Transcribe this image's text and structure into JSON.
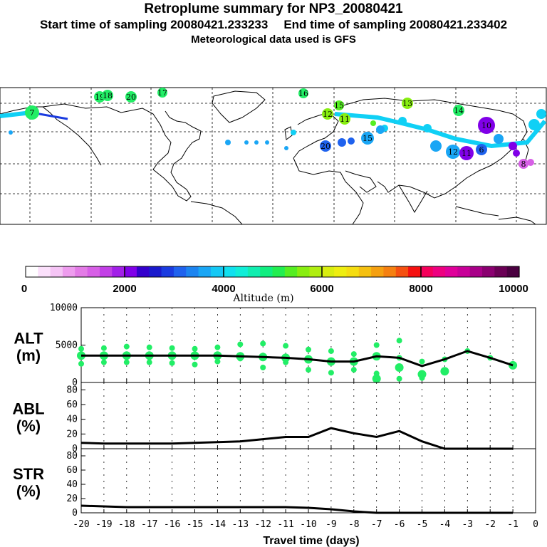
{
  "header": {
    "title": "Retroplume summary for NP3_20080421",
    "start_label": "Start time of sampling 20080421.233233",
    "end_label": "End time of sampling 20080421.233402",
    "met_label": "Meteorological data used is GFS"
  },
  "colorbar": {
    "ticks": [
      "0",
      "2000",
      "4000",
      "6000",
      "8000",
      "10000"
    ],
    "label": "Altitude (m)",
    "colors": [
      "#ffffff",
      "#fbe0fb",
      "#f5c4f5",
      "#ee9cee",
      "#e37be6",
      "#d75fe6",
      "#c23fe6",
      "#a21fe8",
      "#8000e8",
      "#3300cc",
      "#1a1acc",
      "#1a3be0",
      "#1f62ee",
      "#1c84f0",
      "#1aa6f5",
      "#14c8f5",
      "#10e0ef",
      "#10eed8",
      "#10eeb0",
      "#10ee80",
      "#22ee50",
      "#55ee22",
      "#88ee10",
      "#b0ee10",
      "#d8ee10",
      "#eeee10",
      "#f5dd10",
      "#f5c010",
      "#f5a010",
      "#f58010",
      "#f55010",
      "#f51010",
      "#f5005a",
      "#ee0080",
      "#e0009a",
      "#c80098",
      "#a80088",
      "#8a0070",
      "#6a0055",
      "#4a0040"
    ],
    "colors_notes": "colorbar swatches from 0 to 10000 m"
  },
  "map": {
    "trajectory_labels": [
      {
        "text": "19",
        "color": "#22ee66"
      },
      {
        "text": "18",
        "color": "#22ee66"
      },
      {
        "text": "20",
        "color": "#22ee66"
      },
      {
        "text": "17",
        "color": "#22ee66"
      },
      {
        "text": "16",
        "color": "#22ee66"
      },
      {
        "text": "15",
        "color": "#55ee22"
      },
      {
        "text": "12",
        "color": "#88ee10"
      },
      {
        "text": "11",
        "color": "#88ee10"
      },
      {
        "text": "13",
        "color": "#88ee10"
      },
      {
        "text": "14",
        "color": "#22ee66"
      },
      {
        "text": "15",
        "color": "#1aa6f5"
      },
      {
        "text": "12",
        "color": "#1aa6f5"
      },
      {
        "text": "11",
        "color": "#8000e8"
      },
      {
        "text": "10",
        "color": "#8000e8"
      },
      {
        "text": "7",
        "color": "#22ee66"
      },
      {
        "text": "20",
        "color": "#1f62ee"
      },
      {
        "text": "6",
        "color": "#1f62ee"
      },
      {
        "text": "8",
        "color": "#d75fe6"
      }
    ]
  },
  "chart_data": [
    {
      "type": "scatter",
      "panel": "ALT",
      "ylabel": "ALT (m)",
      "ylabel_line1": "ALT",
      "ylabel_line2": "(m)",
      "ylim": [
        0,
        10000
      ],
      "yticks": [
        "10000",
        "5000",
        "0"
      ],
      "xlim": [
        -20,
        0
      ],
      "marker_color": "#22ee66",
      "line": {
        "x": [
          -20,
          -19,
          -18,
          -17,
          -16,
          -15,
          -14,
          -13,
          -12,
          -11,
          -10,
          -9,
          -8,
          -7,
          -6,
          -5,
          -4,
          -3,
          -2,
          -1
        ],
        "y": [
          3600,
          3600,
          3600,
          3600,
          3600,
          3600,
          3600,
          3500,
          3400,
          3300,
          3100,
          2800,
          2800,
          3500,
          3300,
          2200,
          3100,
          4200,
          3300,
          2300
        ]
      },
      "scatter_points": [
        {
          "x": -20,
          "y": 3600
        },
        {
          "x": -20,
          "y": 4500
        },
        {
          "x": -20,
          "y": 2500
        },
        {
          "x": -19,
          "y": 3600
        },
        {
          "x": -19,
          "y": 4600
        },
        {
          "x": -19,
          "y": 2700
        },
        {
          "x": -18,
          "y": 3600
        },
        {
          "x": -18,
          "y": 4800
        },
        {
          "x": -18,
          "y": 2700
        },
        {
          "x": -17,
          "y": 3600
        },
        {
          "x": -17,
          "y": 4700
        },
        {
          "x": -17,
          "y": 2700
        },
        {
          "x": -16,
          "y": 3600
        },
        {
          "x": -16,
          "y": 4600
        },
        {
          "x": -16,
          "y": 2600
        },
        {
          "x": -15,
          "y": 3600
        },
        {
          "x": -15,
          "y": 4500
        },
        {
          "x": -15,
          "y": 2400
        },
        {
          "x": -14,
          "y": 3600
        },
        {
          "x": -14,
          "y": 4700
        },
        {
          "x": -14,
          "y": 2800
        },
        {
          "x": -13,
          "y": 3500
        },
        {
          "x": -13,
          "y": 5100
        },
        {
          "x": -13,
          "y": 3200
        },
        {
          "x": -12,
          "y": 3400
        },
        {
          "x": -12,
          "y": 5200
        },
        {
          "x": -12,
          "y": 2000
        },
        {
          "x": -11,
          "y": 3300
        },
        {
          "x": -11,
          "y": 4900
        },
        {
          "x": -11,
          "y": 2700
        },
        {
          "x": -10,
          "y": 3100
        },
        {
          "x": -10,
          "y": 4400
        },
        {
          "x": -10,
          "y": 1700
        },
        {
          "x": -9,
          "y": 2800
        },
        {
          "x": -9,
          "y": 4200
        },
        {
          "x": -9,
          "y": 1300
        },
        {
          "x": -8,
          "y": 2800
        },
        {
          "x": -8,
          "y": 3800
        },
        {
          "x": -8,
          "y": 1700
        },
        {
          "x": -7,
          "y": 3500
        },
        {
          "x": -7,
          "y": 5000
        },
        {
          "x": -7,
          "y": 1200
        },
        {
          "x": -7,
          "y": 500
        },
        {
          "x": -6,
          "y": 3300
        },
        {
          "x": -6,
          "y": 5600
        },
        {
          "x": -6,
          "y": 2000
        },
        {
          "x": -6,
          "y": 500
        },
        {
          "x": -5,
          "y": 2800
        },
        {
          "x": -5,
          "y": 1100
        },
        {
          "x": -5,
          "y": 600
        },
        {
          "x": -4,
          "y": 3100
        },
        {
          "x": -4,
          "y": 1500
        },
        {
          "x": -3,
          "y": 4200
        },
        {
          "x": -2,
          "y": 3300
        },
        {
          "x": -1,
          "y": 2300
        }
      ]
    },
    {
      "type": "line",
      "panel": "ABL",
      "ylabel": "ABL (%)",
      "ylabel_line1": "ABL",
      "ylabel_line2": "(%)",
      "ylim": [
        0,
        90
      ],
      "yticks": [
        "80",
        "60",
        "40",
        "20",
        "0"
      ],
      "xlim": [
        -20,
        0
      ],
      "x": [
        -20,
        -19,
        -18,
        -17,
        -16,
        -15,
        -14,
        -13,
        -12,
        -11,
        -10,
        -9,
        -8,
        -7,
        -6,
        -5,
        -4,
        -3,
        -2,
        -1
      ],
      "y": [
        8,
        7,
        7,
        7,
        7,
        8,
        9,
        10,
        13,
        16,
        16,
        28,
        21,
        16,
        24,
        10,
        0,
        0,
        0,
        0
      ]
    },
    {
      "type": "line",
      "panel": "STR",
      "ylabel": "STR (%)",
      "ylabel_line1": "STR",
      "ylabel_line2": "(%)",
      "ylim": [
        0,
        90
      ],
      "yticks": [
        "80",
        "60",
        "40",
        "20",
        "0"
      ],
      "xlim": [
        -20,
        0
      ],
      "xlabel": "Travel time (days)",
      "xticks": [
        "-20",
        "-19",
        "-18",
        "-17",
        "-16",
        "-15",
        "-14",
        "-13",
        "-12",
        "-11",
        "-10",
        "-9",
        "-8",
        "-7",
        "-6",
        "-5",
        "-4",
        "-3",
        "-2",
        "-1",
        "0"
      ],
      "x": [
        -20,
        -19,
        -18,
        -17,
        -16,
        -15,
        -14,
        -13,
        -12,
        -11,
        -10,
        -9,
        -8,
        -7,
        -6,
        -5,
        -4,
        -3,
        -2,
        -1
      ],
      "y": [
        10,
        9,
        8,
        8,
        8,
        8,
        8,
        8,
        8,
        8,
        7,
        5,
        2,
        0,
        0,
        0,
        0,
        0,
        0,
        0
      ]
    }
  ]
}
